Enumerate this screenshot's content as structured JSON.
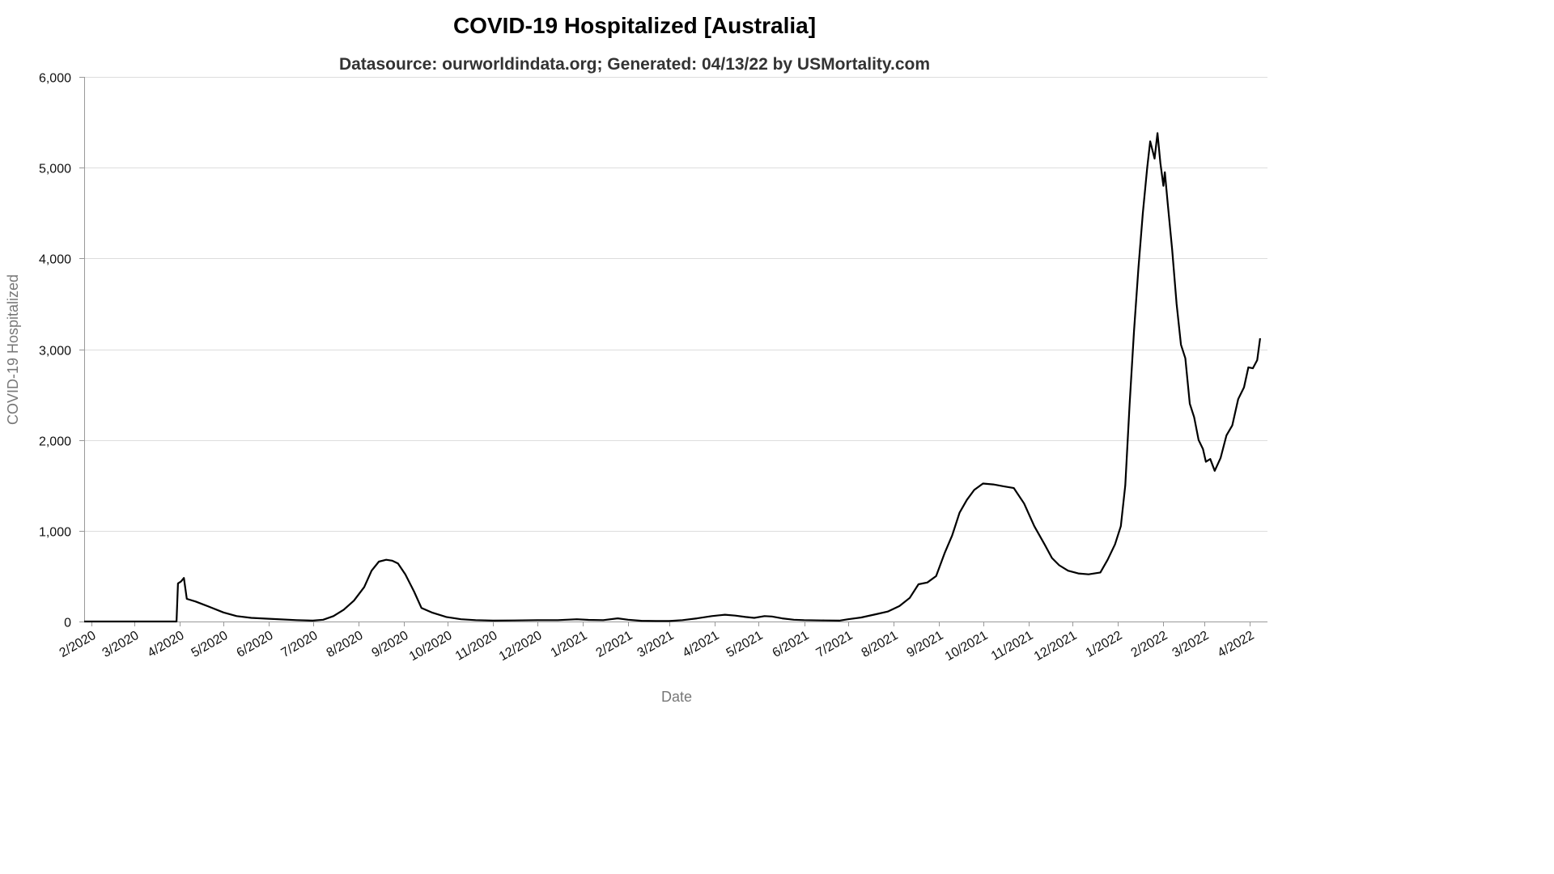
{
  "chart_data": {
    "type": "line",
    "title": "COVID-19 Hospitalized [Australia]",
    "subtitle": "Datasource: ourworldindata.org; Generated: 04/13/22 by USMortality.com",
    "xlabel": "Date",
    "ylabel": "COVID-19 Hospitalized",
    "ylim": [
      0,
      6000
    ],
    "yticks": [
      0,
      1000,
      2000,
      3000,
      4000,
      5000,
      6000
    ],
    "ytick_labels": [
      "0",
      "1,000",
      "2,000",
      "3,000",
      "4,000",
      "5,000",
      "6,000"
    ],
    "xlim": [
      "2020-01-27",
      "2022-04-13"
    ],
    "xticks": [
      "2020-02-01",
      "2020-03-01",
      "2020-04-01",
      "2020-05-01",
      "2020-06-01",
      "2020-07-01",
      "2020-08-01",
      "2020-09-01",
      "2020-10-01",
      "2020-11-01",
      "2020-12-01",
      "2021-01-01",
      "2021-02-01",
      "2021-03-01",
      "2021-04-01",
      "2021-05-01",
      "2021-06-01",
      "2021-07-01",
      "2021-08-01",
      "2021-09-01",
      "2021-10-01",
      "2021-11-01",
      "2021-12-01",
      "2022-01-01",
      "2022-02-01",
      "2022-03-01",
      "2022-04-01"
    ],
    "xtick_labels": [
      "2/2020",
      "3/2020",
      "4/2020",
      "5/2020",
      "6/2020",
      "7/2020",
      "8/2020",
      "9/2020",
      "10/2020",
      "11/2020",
      "12/2020",
      "1/2021",
      "2/2021",
      "3/2021",
      "4/2021",
      "5/2021",
      "6/2021",
      "7/2021",
      "8/2021",
      "9/2021",
      "10/2021",
      "11/2021",
      "12/2021",
      "1/2022",
      "2/2022",
      "3/2022",
      "4/2022"
    ],
    "grid": true,
    "line_color": "#000000",
    "series": [
      {
        "points": [
          [
            "2020-01-27",
            0
          ],
          [
            "2020-03-30",
            0
          ],
          [
            "2020-03-31",
            420
          ],
          [
            "2020-04-02",
            440
          ],
          [
            "2020-04-04",
            480
          ],
          [
            "2020-04-06",
            250
          ],
          [
            "2020-04-12",
            220
          ],
          [
            "2020-04-20",
            170
          ],
          [
            "2020-05-01",
            100
          ],
          [
            "2020-05-10",
            60
          ],
          [
            "2020-05-20",
            40
          ],
          [
            "2020-06-01",
            30
          ],
          [
            "2020-06-20",
            15
          ],
          [
            "2020-07-01",
            10
          ],
          [
            "2020-07-08",
            20
          ],
          [
            "2020-07-15",
            60
          ],
          [
            "2020-07-22",
            130
          ],
          [
            "2020-07-29",
            230
          ],
          [
            "2020-08-05",
            380
          ],
          [
            "2020-08-10",
            560
          ],
          [
            "2020-08-15",
            660
          ],
          [
            "2020-08-20",
            680
          ],
          [
            "2020-08-24",
            670
          ],
          [
            "2020-08-28",
            640
          ],
          [
            "2020-09-02",
            520
          ],
          [
            "2020-09-08",
            330
          ],
          [
            "2020-09-13",
            150
          ],
          [
            "2020-09-20",
            100
          ],
          [
            "2020-09-30",
            50
          ],
          [
            "2020-10-10",
            25
          ],
          [
            "2020-10-20",
            15
          ],
          [
            "2020-11-01",
            10
          ],
          [
            "2020-11-15",
            12
          ],
          [
            "2020-12-01",
            15
          ],
          [
            "2020-12-15",
            15
          ],
          [
            "2020-12-28",
            25
          ],
          [
            "2021-01-05",
            18
          ],
          [
            "2021-01-15",
            15
          ],
          [
            "2021-01-25",
            35
          ],
          [
            "2021-02-01",
            20
          ],
          [
            "2021-02-10",
            8
          ],
          [
            "2021-02-20",
            5
          ],
          [
            "2021-03-01",
            5
          ],
          [
            "2021-03-10",
            15
          ],
          [
            "2021-03-20",
            35
          ],
          [
            "2021-03-30",
            60
          ],
          [
            "2021-04-08",
            75
          ],
          [
            "2021-04-15",
            65
          ],
          [
            "2021-04-22",
            50
          ],
          [
            "2021-04-28",
            40
          ],
          [
            "2021-05-05",
            60
          ],
          [
            "2021-05-10",
            55
          ],
          [
            "2021-05-17",
            35
          ],
          [
            "2021-05-25",
            20
          ],
          [
            "2021-06-01",
            15
          ],
          [
            "2021-06-15",
            12
          ],
          [
            "2021-06-25",
            10
          ],
          [
            "2021-07-01",
            25
          ],
          [
            "2021-07-10",
            45
          ],
          [
            "2021-07-20",
            80
          ],
          [
            "2021-07-28",
            110
          ],
          [
            "2021-08-05",
            170
          ],
          [
            "2021-08-12",
            260
          ],
          [
            "2021-08-18",
            410
          ],
          [
            "2021-08-24",
            430
          ],
          [
            "2021-08-30",
            500
          ],
          [
            "2021-09-05",
            760
          ],
          [
            "2021-09-10",
            950
          ],
          [
            "2021-09-15",
            1200
          ],
          [
            "2021-09-20",
            1340
          ],
          [
            "2021-09-25",
            1450
          ],
          [
            "2021-10-01",
            1520
          ],
          [
            "2021-10-08",
            1510
          ],
          [
            "2021-10-15",
            1490
          ],
          [
            "2021-10-22",
            1470
          ],
          [
            "2021-10-29",
            1300
          ],
          [
            "2021-11-05",
            1050
          ],
          [
            "2021-11-12",
            850
          ],
          [
            "2021-11-17",
            700
          ],
          [
            "2021-11-22",
            620
          ],
          [
            "2021-11-28",
            560
          ],
          [
            "2021-12-05",
            530
          ],
          [
            "2021-12-12",
            520
          ],
          [
            "2021-12-20",
            540
          ],
          [
            "2021-12-25",
            680
          ],
          [
            "2021-12-30",
            850
          ],
          [
            "2022-01-03",
            1050
          ],
          [
            "2022-01-06",
            1500
          ],
          [
            "2022-01-09",
            2400
          ],
          [
            "2022-01-12",
            3200
          ],
          [
            "2022-01-15",
            3900
          ],
          [
            "2022-01-18",
            4500
          ],
          [
            "2022-01-21",
            5000
          ],
          [
            "2022-01-23",
            5290
          ],
          [
            "2022-01-26",
            5100
          ],
          [
            "2022-01-28",
            5380
          ],
          [
            "2022-01-30",
            5050
          ],
          [
            "2022-02-01",
            4800
          ],
          [
            "2022-02-02",
            4950
          ],
          [
            "2022-02-04",
            4600
          ],
          [
            "2022-02-07",
            4100
          ],
          [
            "2022-02-10",
            3500
          ],
          [
            "2022-02-13",
            3050
          ],
          [
            "2022-02-16",
            2900
          ],
          [
            "2022-02-19",
            2400
          ],
          [
            "2022-02-22",
            2250
          ],
          [
            "2022-02-25",
            2000
          ],
          [
            "2022-02-28",
            1900
          ],
          [
            "2022-03-02",
            1760
          ],
          [
            "2022-03-05",
            1790
          ],
          [
            "2022-03-08",
            1660
          ],
          [
            "2022-03-12",
            1800
          ],
          [
            "2022-03-16",
            2050
          ],
          [
            "2022-03-20",
            2160
          ],
          [
            "2022-03-24",
            2450
          ],
          [
            "2022-03-28",
            2580
          ],
          [
            "2022-03-31",
            2800
          ],
          [
            "2022-04-03",
            2790
          ],
          [
            "2022-04-06",
            2880
          ],
          [
            "2022-04-08",
            3120
          ]
        ]
      }
    ]
  }
}
